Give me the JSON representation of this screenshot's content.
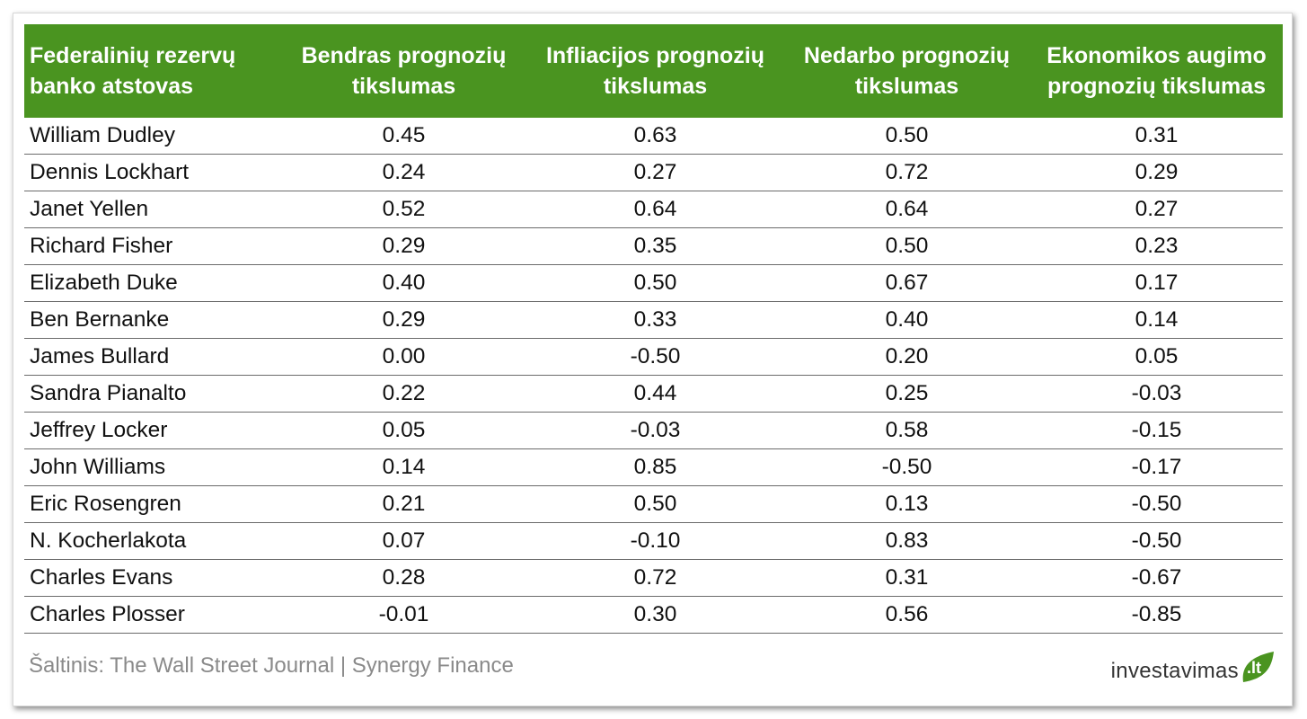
{
  "chart_data": {
    "type": "table",
    "columns": [
      "Federalinių rezervų banko atstovas",
      "Bendras prognozių tikslumas",
      "Infliacijos prognozių tikslumas",
      "Nedarbo prognozių tikslumas",
      "Ekonomikos augimo prognozių tikslumas"
    ],
    "header_lines": [
      [
        "Federalinių rezervų",
        "banko atstovas"
      ],
      [
        "Bendras prognozių",
        "tikslumas"
      ],
      [
        "Infliacijos prognozių",
        "tikslumas"
      ],
      [
        "Nedarbo prognozių",
        "tikslumas"
      ],
      [
        "Ekonomikos augimo",
        "prognozių tikslumas"
      ]
    ],
    "rows": [
      [
        "William Dudley",
        "0.45",
        "0.63",
        "0.50",
        "0.31"
      ],
      [
        "Dennis Lockhart",
        "0.24",
        "0.27",
        "0.72",
        "0.29"
      ],
      [
        "Janet Yellen",
        "0.52",
        "0.64",
        "0.64",
        "0.27"
      ],
      [
        "Richard Fisher",
        "0.29",
        "0.35",
        "0.50",
        "0.23"
      ],
      [
        "Elizabeth Duke",
        "0.40",
        "0.50",
        "0.67",
        "0.17"
      ],
      [
        "Ben Bernanke",
        "0.29",
        "0.33",
        "0.40",
        "0.14"
      ],
      [
        "James Bullard",
        "0.00",
        "-0.50",
        "0.20",
        "0.05"
      ],
      [
        "Sandra Pianalto",
        "0.22",
        "0.44",
        "0.25",
        "-0.03"
      ],
      [
        "Jeffrey Locker",
        "0.05",
        "-0.03",
        "0.58",
        "-0.15"
      ],
      [
        "John Williams",
        "0.14",
        "0.85",
        "-0.50",
        "-0.17"
      ],
      [
        "Eric Rosengren",
        "0.21",
        "0.50",
        "0.13",
        "-0.50"
      ],
      [
        "N. Kocherlakota",
        "0.07",
        "-0.10",
        "0.83",
        "-0.50"
      ],
      [
        "Charles Evans",
        "0.28",
        "0.72",
        "0.31",
        "-0.67"
      ],
      [
        "Charles Plosser",
        "-0.01",
        "0.30",
        "0.56",
        "-0.85"
      ]
    ]
  },
  "footer": {
    "source": "Šaltinis: The Wall Street Journal | Synergy Finance",
    "logo_text": "investavimas",
    "logo_suffix": ".lt"
  },
  "colors": {
    "header_bg": "#4a9420",
    "header_text": "#ffffff",
    "logo_leaf": "#4a9420"
  }
}
